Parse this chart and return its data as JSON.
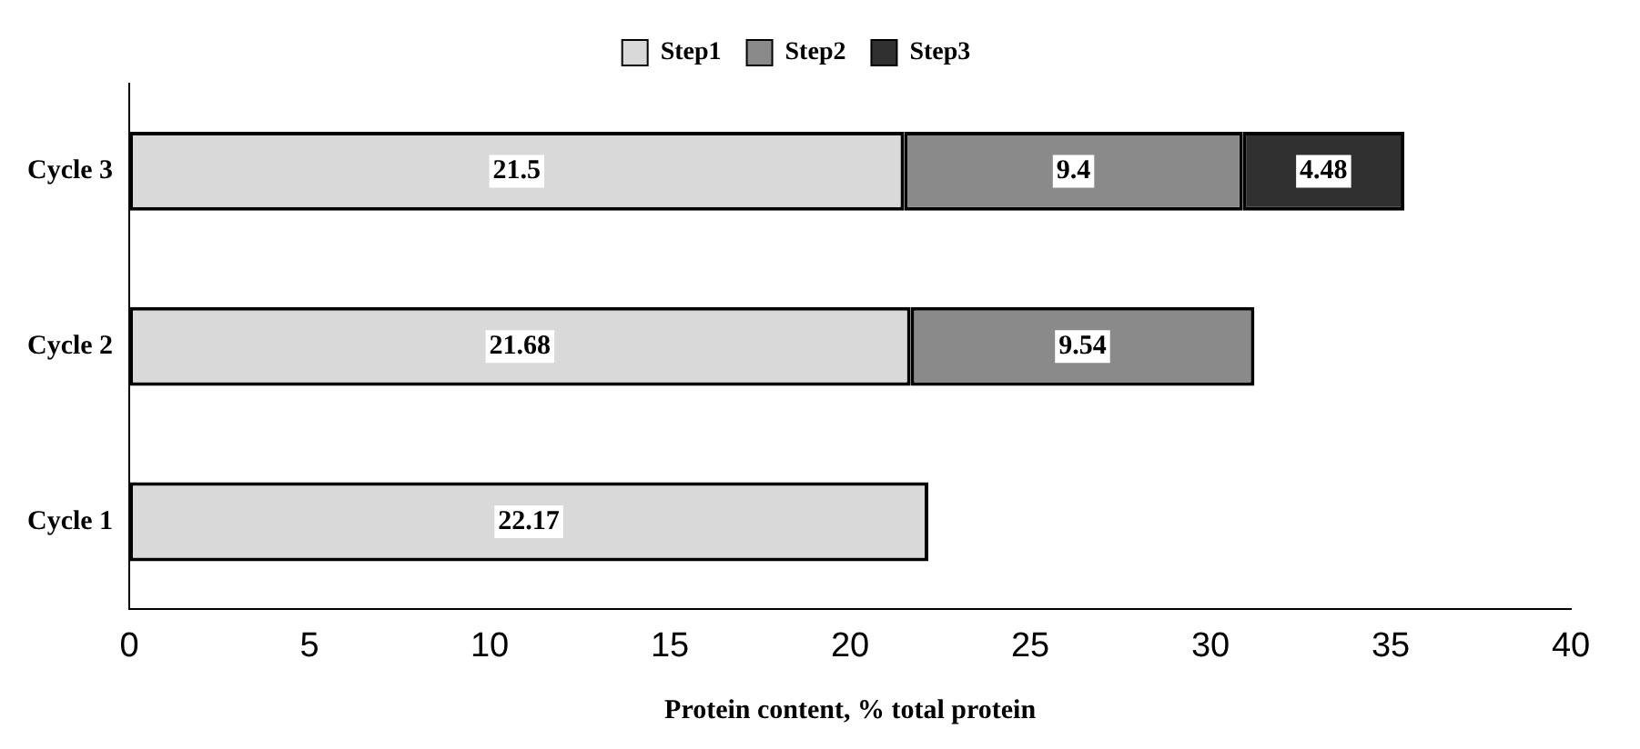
{
  "chart_data": {
    "type": "bar",
    "orientation": "horizontal",
    "stacked": true,
    "xlabel": "Protein content, % total protein",
    "categories": [
      "Cycle 3",
      "Cycle 2",
      "Cycle 1"
    ],
    "series": [
      {
        "name": "Step1",
        "color": "#d9d9d9",
        "values": [
          21.5,
          21.68,
          22.17
        ]
      },
      {
        "name": "Step2",
        "color": "#8a8a8a",
        "values": [
          9.4,
          9.54,
          null
        ]
      },
      {
        "name": "Step3",
        "color": "#303030",
        "values": [
          4.48,
          null,
          null
        ]
      }
    ],
    "xlim": [
      0,
      40
    ],
    "xticks": [
      0,
      5,
      10,
      15,
      20,
      25,
      30,
      35,
      40
    ],
    "data_labels": true,
    "grid": false,
    "legend": "top"
  }
}
